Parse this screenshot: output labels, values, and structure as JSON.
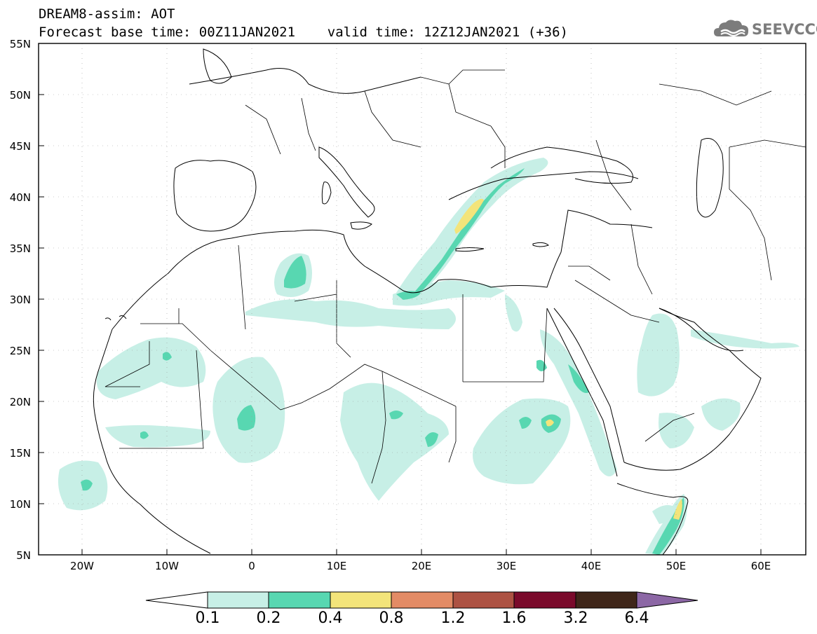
{
  "header": {
    "title_line1": "DREAM8-assim: AOT",
    "title_line2": "Forecast base time: 00Z11JAN2021    valid time: 12Z12JAN2021 (+36)"
  },
  "logo": {
    "text": "SEEVCCC",
    "icon": "cloud-icon"
  },
  "map": {
    "lat_labels": [
      "55N",
      "50N",
      "45N",
      "40N",
      "35N",
      "30N",
      "25N",
      "20N",
      "15N",
      "10N",
      "5N"
    ],
    "lon_labels": [
      "20W",
      "10W",
      "0",
      "10E",
      "20E",
      "30E",
      "40E",
      "50E",
      "60E"
    ]
  },
  "colorbar": {
    "labels": [
      "0.1",
      "0.2",
      "0.4",
      "0.8",
      "1.2",
      "1.6",
      "3.2",
      "6.4"
    ],
    "colors": [
      "#ffffff",
      "#c7efe6",
      "#58d7b1",
      "#f3e47a",
      "#e38b65",
      "#ad5243",
      "#7a0a2b",
      "#3f2619",
      "#8c67a5"
    ]
  }
}
